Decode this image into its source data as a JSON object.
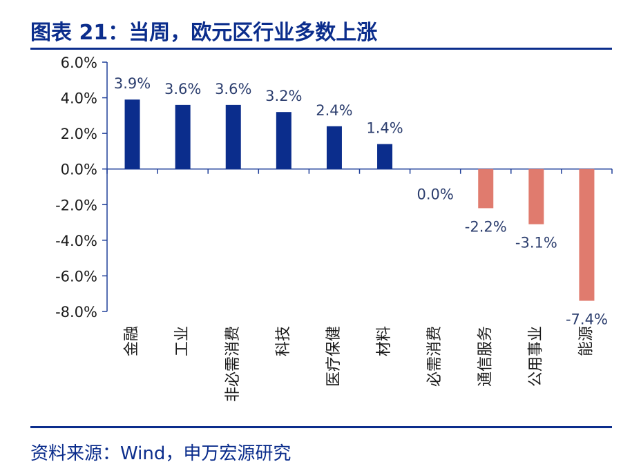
{
  "header": {
    "title": "图表 21：当周，欧元区行业多数上涨"
  },
  "footer": {
    "source": "资料来源：Wind，申万宏源研究"
  },
  "colors": {
    "accent": "#0b2d8c",
    "positive": "#0b2d8c",
    "negative": "#e07b6e"
  },
  "chart_data": {
    "type": "bar",
    "title": "当周，欧元区行业多数上涨",
    "xlabel": "",
    "ylabel": "",
    "ylim": [
      -8.0,
      6.0
    ],
    "yticks": [
      "6.0%",
      "4.0%",
      "2.0%",
      "0.0%",
      "-2.0%",
      "-4.0%",
      "-6.0%",
      "-8.0%"
    ],
    "ytick_values": [
      6,
      4,
      2,
      0,
      -2,
      -4,
      -6,
      -8
    ],
    "categories": [
      "金融",
      "工业",
      "非必需消费",
      "科技",
      "医疗保健",
      "材料",
      "必需消费",
      "通信服务",
      "公用事业",
      "能源"
    ],
    "values": [
      3.9,
      3.6,
      3.6,
      3.2,
      2.4,
      1.4,
      0.0,
      -2.2,
      -3.1,
      -7.4
    ],
    "data_labels": [
      "3.9%",
      "3.6%",
      "3.6%",
      "3.2%",
      "2.4%",
      "1.4%",
      "0.0%",
      "-2.2%",
      "-3.1%",
      "-7.4%"
    ],
    "grid": false,
    "legend": "none"
  }
}
